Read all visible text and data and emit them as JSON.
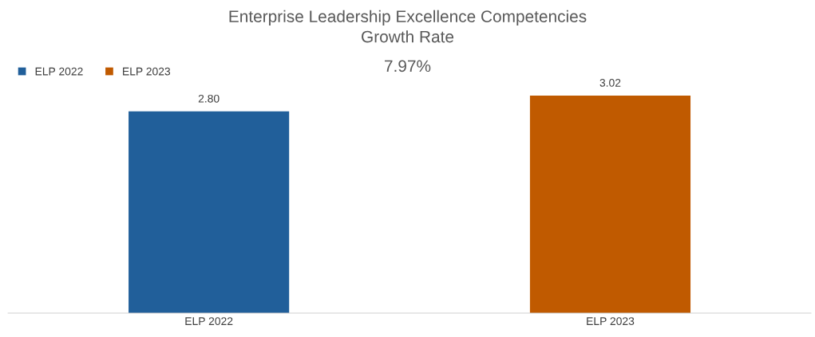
{
  "chart_data": {
    "type": "bar",
    "title": "Enterprise Leadership Excellence Competencies\nGrowth Rate",
    "categories": [
      "ELP 2022",
      "ELP 2023"
    ],
    "series": [
      {
        "name": "ELP 2022",
        "color": "#215f9a",
        "values": [
          2.8,
          null
        ],
        "value_labels": [
          "2.80",
          null
        ]
      },
      {
        "name": "ELP 2023",
        "color": "#c05a00",
        "values": [
          null,
          3.02
        ],
        "value_labels": [
          null,
          "3.02"
        ]
      }
    ],
    "annotations": [
      "7.97%"
    ],
    "tick_labels": "x",
    "legend": "top left",
    "grid": false
  }
}
